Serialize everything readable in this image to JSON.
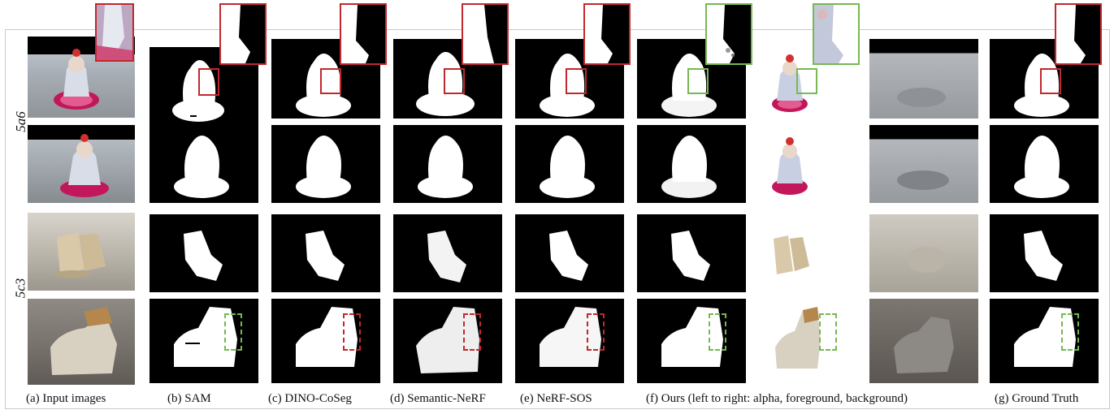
{
  "row_labels": {
    "top": "5a6",
    "bottom": "5c3"
  },
  "captions": {
    "a": "(a) Input images",
    "b": "(b) SAM",
    "c": "(c) DINO-CoSeg",
    "d": "(d) Semantic-NeRF",
    "e": "(e) NeRF-SOS",
    "f": "(f) Ours (left to right: alpha, foreground, background)",
    "g": "(g) Ground Truth"
  },
  "colors": {
    "highlight_red": "#c0282d",
    "highlight_green": "#76b852",
    "mask_fg": "#ffffff",
    "mask_bg": "#000000"
  }
}
